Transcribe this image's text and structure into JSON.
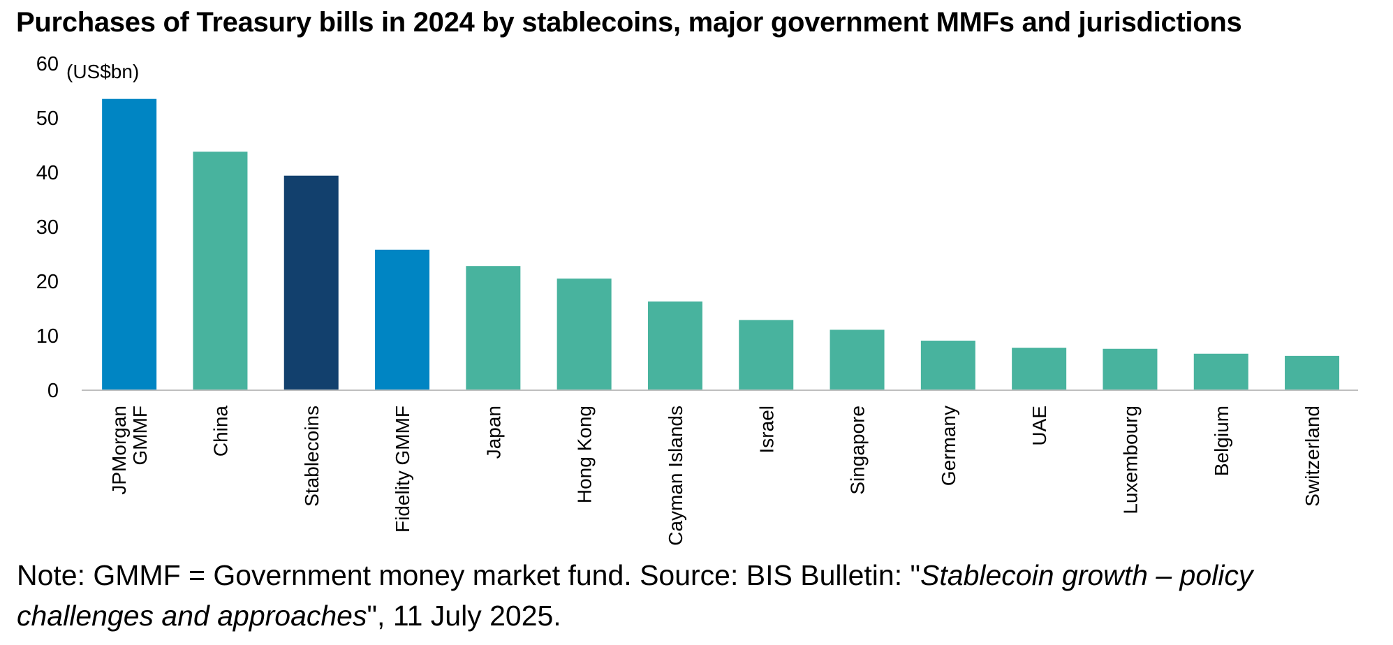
{
  "title": "Purchases of Treasury bills in 2024 by stablecoins, major government MMFs and jurisdictions",
  "colors": {
    "gmmf": "#0085C3",
    "jurisdiction": "#48B39E",
    "stablecoins": "#12406D",
    "axis": "#BFBFBF"
  },
  "chart_data": {
    "type": "bar",
    "title": "Purchases of Treasury bills in 2024 by stablecoins, major government MMFs and jurisdictions",
    "unit_label": "(US$bn)",
    "ylim": [
      0,
      60
    ],
    "yticks": [
      "0",
      "10",
      "20",
      "30",
      "40",
      "50",
      "60"
    ],
    "categories": [
      [
        "JPMorgan",
        "GMMF"
      ],
      [
        "China"
      ],
      [
        "Stablecoins"
      ],
      [
        "Fidelity GMMF"
      ],
      [
        "Japan"
      ],
      [
        "Hong Kong"
      ],
      [
        "Cayman Islands"
      ],
      [
        "Israel"
      ],
      [
        "Singapore"
      ],
      [
        "Germany"
      ],
      [
        "UAE"
      ],
      [
        "Luxembourg"
      ],
      [
        "Belgium"
      ],
      [
        "Switzerland"
      ]
    ],
    "values": [
      53.5,
      43.8,
      39.4,
      25.8,
      22.8,
      20.5,
      16.3,
      12.9,
      11.1,
      9.1,
      7.8,
      7.6,
      6.7,
      6.3
    ],
    "groups": [
      "gmmf",
      "jurisdiction",
      "stablecoins",
      "gmmf",
      "jurisdiction",
      "jurisdiction",
      "jurisdiction",
      "jurisdiction",
      "jurisdiction",
      "jurisdiction",
      "jurisdiction",
      "jurisdiction",
      "jurisdiction",
      "jurisdiction"
    ]
  },
  "note": {
    "prefix": "Note: GMMF = Government money market fund. Source: BIS Bulletin: \"",
    "italic": "Stablecoin growth – policy challenges and approaches",
    "suffix": "\", 11 July 2025."
  }
}
